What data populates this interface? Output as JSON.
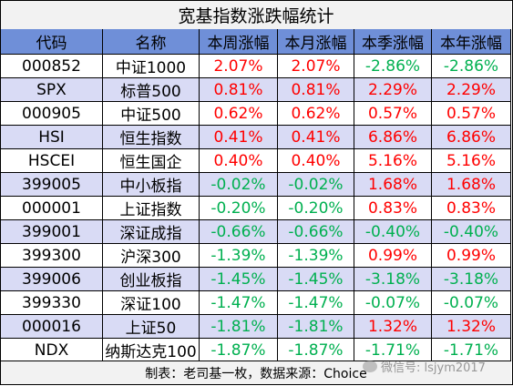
{
  "title": "宽基指数涨跌幅统计",
  "headers": [
    "代码",
    "名称",
    "本周涨幅",
    "本月涨幅",
    "本季涨幅",
    "本年涨幅"
  ],
  "rows": [
    {
      "code": "000852",
      "name": "中证1000",
      "week": "2.07%",
      "month": "2.07%",
      "quarter": "-2.86%",
      "year": "-2.86%"
    },
    {
      "code": "SPX",
      "name": "标普500",
      "week": "0.81%",
      "month": "0.81%",
      "quarter": "2.29%",
      "year": "2.29%"
    },
    {
      "code": "000905",
      "name": "中证500",
      "week": "0.62%",
      "month": "0.62%",
      "quarter": "0.57%",
      "year": "0.57%"
    },
    {
      "code": "HSI",
      "name": "恒生指数",
      "week": "0.41%",
      "month": "0.41%",
      "quarter": "6.86%",
      "year": "6.86%"
    },
    {
      "code": "HSCEI",
      "name": "恒生国企",
      "week": "0.40%",
      "month": "0.40%",
      "quarter": "5.16%",
      "year": "5.16%"
    },
    {
      "code": "399005",
      "name": "中小板指",
      "week": "-0.02%",
      "month": "-0.02%",
      "quarter": "1.68%",
      "year": "1.68%"
    },
    {
      "code": "000001",
      "name": "上证指数",
      "week": "-0.20%",
      "month": "-0.20%",
      "quarter": "0.83%",
      "year": "0.83%"
    },
    {
      "code": "399001",
      "name": "深证成指",
      "week": "-0.66%",
      "month": "-0.66%",
      "quarter": "-0.40%",
      "year": "-0.40%"
    },
    {
      "code": "399300",
      "name": "沪深300",
      "week": "-1.39%",
      "month": "-1.39%",
      "quarter": "0.99%",
      "year": "0.99%"
    },
    {
      "code": "399006",
      "name": "创业板指",
      "week": "-1.45%",
      "month": "-1.45%",
      "quarter": "-3.18%",
      "year": "-3.18%"
    },
    {
      "code": "399330",
      "name": "深证100",
      "week": "-1.47%",
      "month": "-1.47%",
      "quarter": "-0.07%",
      "year": "-0.07%"
    },
    {
      "code": "000016",
      "name": "上证50",
      "week": "-1.81%",
      "month": "-1.81%",
      "quarter": "1.32%",
      "year": "1.32%"
    },
    {
      "code": "NDX",
      "name": "纳斯达克100",
      "week": "-1.87%",
      "month": "-1.87%",
      "quarter": "-1.71%",
      "year": "-1.71%"
    }
  ],
  "footer": "制表：老司基一枚，数据来源：Choice",
  "watermark": "微信号: lsjym2017",
  "colors": {
    "positive": "#ff0000",
    "negative": "#00b050",
    "header_bg": "#6f8fd8",
    "shaded_row": "#d9dbf5"
  }
}
